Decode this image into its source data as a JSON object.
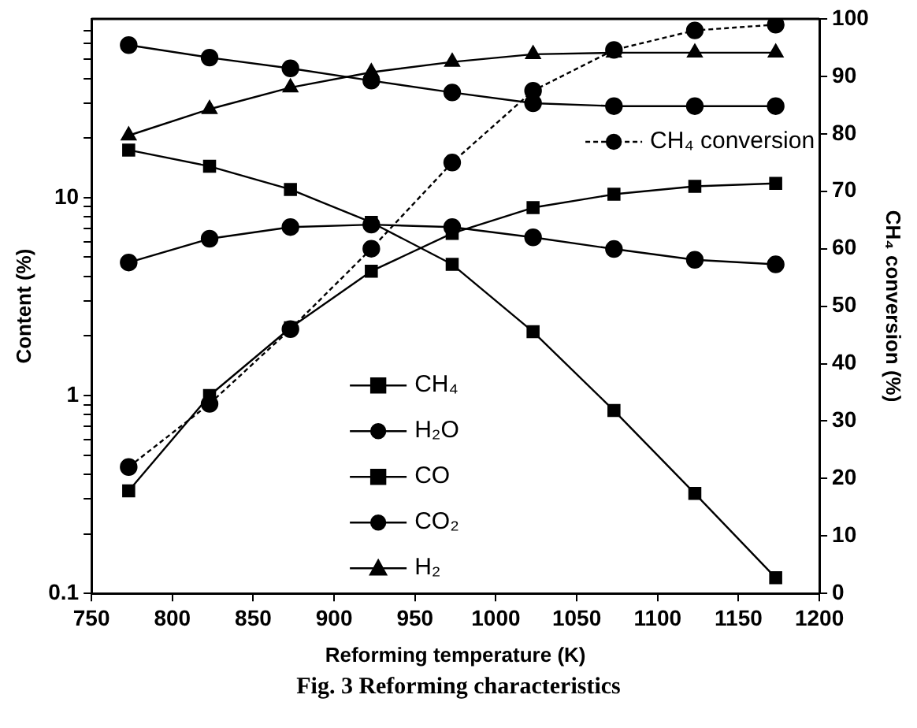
{
  "chart_data": {
    "type": "line",
    "title": "Fig. 3  Reforming  characteristics",
    "xlabel": "Reforming temperature (K)",
    "ylabel": "Content (%)",
    "y2label": "CH₄ conversion (%)",
    "x": [
      773,
      823,
      873,
      923,
      973,
      1023,
      1073,
      1123,
      1173
    ],
    "series": [
      {
        "name": "CH₄",
        "color": "#000000",
        "marker": "square",
        "values": [
          17.4,
          14.4,
          11,
          7.5,
          4.6,
          2.1,
          0.84,
          0.32,
          0.12
        ]
      },
      {
        "name": "H₂O",
        "color": "#000000",
        "marker": "circle",
        "values": [
          59,
          51,
          45,
          39,
          34,
          30,
          29,
          29,
          29
        ]
      },
      {
        "name": "CO",
        "color": "#000000",
        "marker": "square",
        "values": [
          0.33,
          1.0,
          2.2,
          4.25,
          6.6,
          8.9,
          10.4,
          11.4,
          11.8
        ]
      },
      {
        "name": "CO₂",
        "color": "#000000",
        "marker": "circle",
        "values": [
          4.7,
          6.2,
          7.1,
          7.3,
          7.1,
          6.3,
          5.5,
          4.85,
          4.6
        ]
      },
      {
        "name": "H₂",
        "color": "#000000",
        "marker": "triangle",
        "values": [
          20.6,
          28,
          36,
          43,
          48.5,
          53,
          54,
          54,
          54
        ]
      },
      {
        "name": "CH₄ conversion",
        "color": "#000000",
        "marker": "circle",
        "axis": "y2",
        "line_style": "dashed",
        "values": [
          22,
          33,
          46,
          60,
          75,
          87.5,
          94.6,
          98,
          99
        ]
      }
    ],
    "log": "y",
    "legend": "bottom",
    "grid": false,
    "xlim": [
      750,
      1200
    ],
    "xticks": [
      750,
      800,
      850,
      900,
      950,
      1000,
      1050,
      1100,
      1150,
      1200
    ],
    "ylim": [
      0.1,
      80
    ],
    "yticks": [
      {
        "value": 0.1,
        "label": "0.1"
      },
      {
        "value": 0.2,
        "label": null
      },
      {
        "value": 0.3,
        "label": null
      },
      {
        "value": 0.4,
        "label": null
      },
      {
        "value": 0.5,
        "label": null
      },
      {
        "value": 0.6,
        "label": null
      },
      {
        "value": 0.7,
        "label": null
      },
      {
        "value": 0.8,
        "label": null
      },
      {
        "value": 0.9,
        "label": null
      },
      {
        "value": 1,
        "label": "1"
      },
      {
        "value": 2,
        "label": null
      },
      {
        "value": 3,
        "label": null
      },
      {
        "value": 4,
        "label": null
      },
      {
        "value": 5,
        "label": null
      },
      {
        "value": 6,
        "label": null
      },
      {
        "value": 7,
        "label": null
      },
      {
        "value": 8,
        "label": null
      },
      {
        "value": 9,
        "label": null
      },
      {
        "value": 10,
        "label": "10"
      },
      {
        "value": 20,
        "label": null
      },
      {
        "value": 30,
        "label": null
      },
      {
        "value": 40,
        "label": null
      },
      {
        "value": 50,
        "label": null
      },
      {
        "value": 60,
        "label": null
      },
      {
        "value": 70,
        "label": null
      }
    ],
    "y2lim": [
      0,
      100
    ],
    "y2ticks": [
      0,
      10,
      20,
      30,
      40,
      50,
      60,
      70,
      80,
      90,
      100
    ]
  }
}
